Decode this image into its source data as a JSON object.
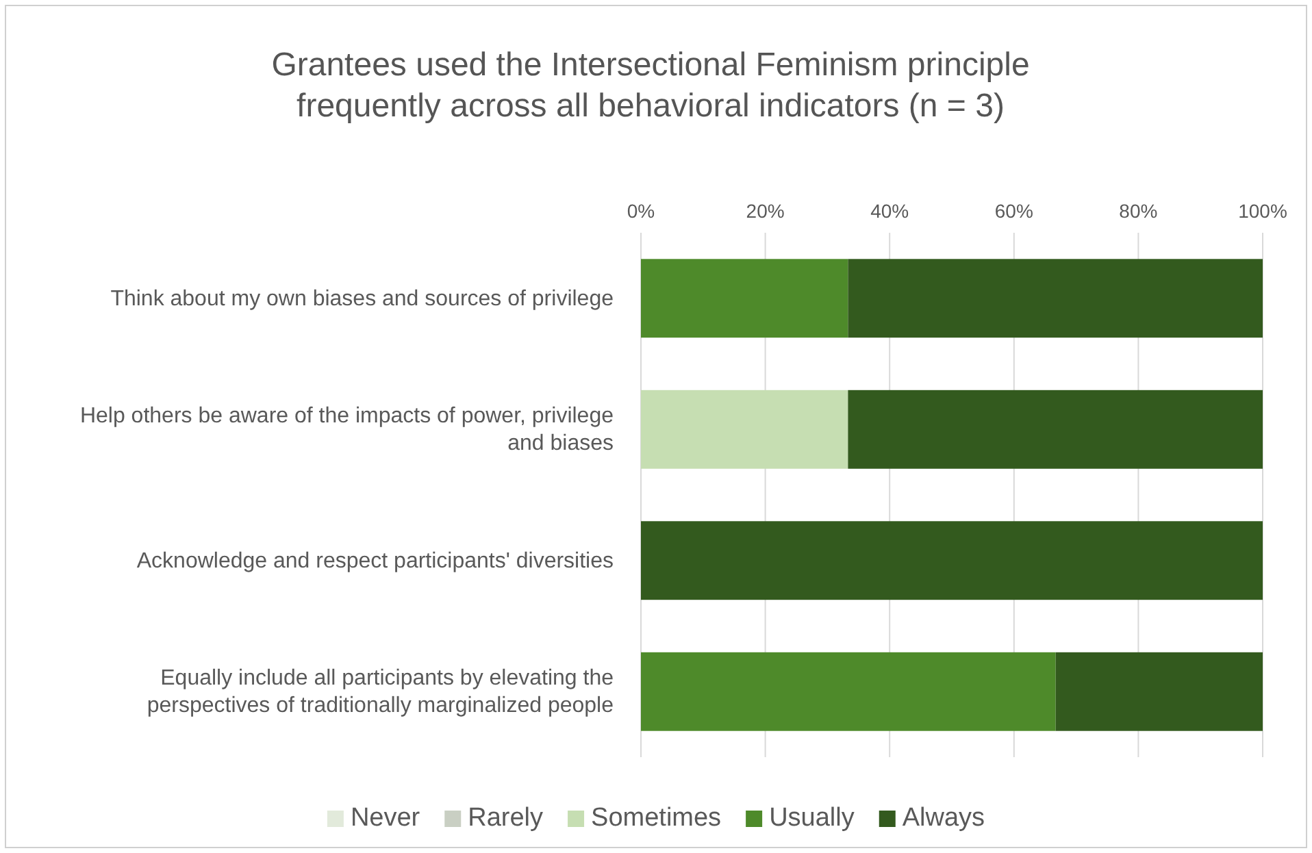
{
  "chart_data": {
    "type": "bar",
    "orientation": "horizontal",
    "stacked": true,
    "title": "Grantees used the Intersectional Feminism principle frequently across all behavioral indicators (n = 3)",
    "categories": [
      "Think about my own biases and sources of privilege",
      "Help others be aware of the impacts of power, privilege and biases",
      "Acknowledge and respect participants' diversities",
      "Equally include all participants by elevating the perspectives of traditionally marginalized people"
    ],
    "series": [
      {
        "name": "Never",
        "color": "#e2eadb",
        "values": [
          0,
          0,
          0,
          0
        ]
      },
      {
        "name": "Rarely",
        "color": "#c9cfc3",
        "values": [
          0,
          0,
          0,
          0
        ]
      },
      {
        "name": "Sometimes",
        "color": "#c6deb2",
        "values": [
          0,
          33.3,
          0,
          0
        ]
      },
      {
        "name": "Usually",
        "color": "#4e8a2a",
        "values": [
          33.3,
          0,
          0,
          66.7
        ]
      },
      {
        "name": "Always",
        "color": "#335a1e",
        "values": [
          66.7,
          66.7,
          100,
          33.3
        ]
      }
    ],
    "xlim": [
      0,
      100
    ],
    "xticks": [
      {
        "value": 0,
        "label": "0%"
      },
      {
        "value": 20,
        "label": "20%"
      },
      {
        "value": 40,
        "label": "40%"
      },
      {
        "value": 60,
        "label": "60%"
      },
      {
        "value": 80,
        "label": "80%"
      },
      {
        "value": 100,
        "label": "100%"
      }
    ],
    "grid": "x",
    "legend": "bottom"
  }
}
